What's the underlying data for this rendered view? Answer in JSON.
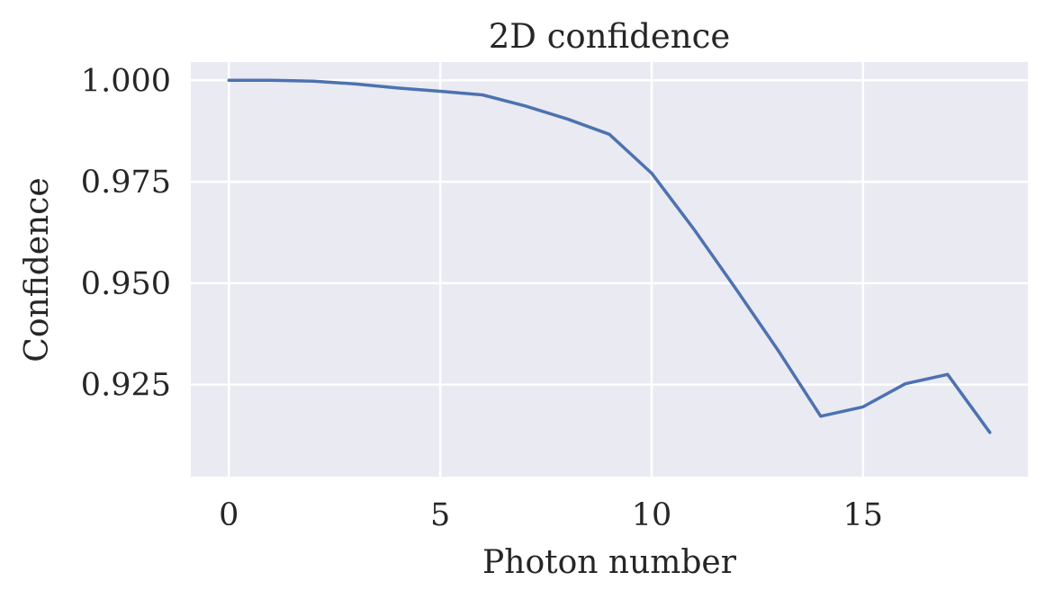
{
  "chart_data": {
    "type": "line",
    "title": "2D confidence",
    "xlabel": "Photon number",
    "ylabel": "Confidence",
    "xlim": [
      -0.9,
      18.9
    ],
    "ylim": [
      0.9023,
      1.0045
    ],
    "xticks": [
      0,
      5,
      10,
      15
    ],
    "xtick_labels": [
      "0",
      "5",
      "10",
      "15"
    ],
    "yticks": [
      0.925,
      0.95,
      0.975,
      1.0
    ],
    "ytick_labels": [
      "0.925",
      "0.950",
      "0.975",
      "1.000"
    ],
    "grid": true,
    "series": [
      {
        "color": "#4c72b0",
        "x": [
          0,
          1,
          2,
          3,
          4,
          5,
          6,
          7,
          8,
          9,
          10,
          11,
          12,
          13,
          14,
          15,
          16,
          17,
          18
        ],
        "y": [
          1.0,
          1.0,
          0.9998,
          0.9991,
          0.9981,
          0.9973,
          0.9964,
          0.9937,
          0.9905,
          0.9867,
          0.9771,
          0.9633,
          0.9485,
          0.9333,
          0.9172,
          0.9195,
          0.9252,
          0.9275,
          0.9132
        ]
      }
    ]
  }
}
